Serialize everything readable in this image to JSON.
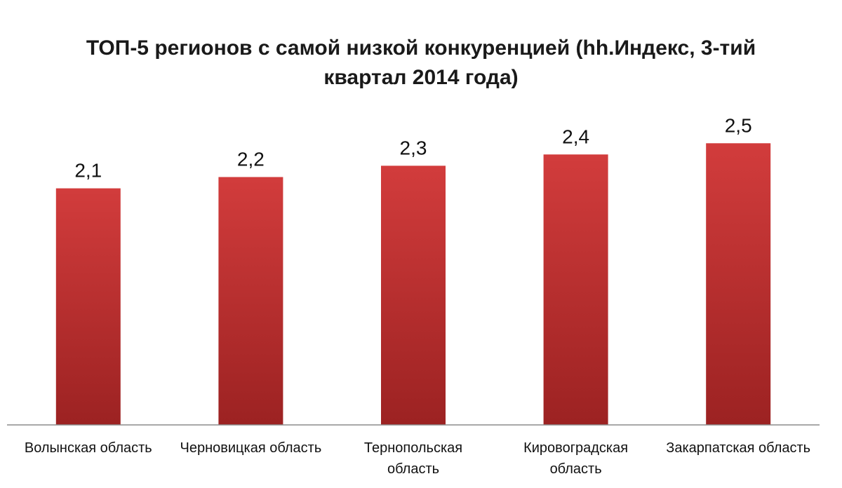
{
  "chart_data": {
    "type": "bar",
    "title": "ТОП-5 регионов с самой низкой конкуренцией (hh.Индекс, 3-тий квартал 2014 года)",
    "categories": [
      "Волынская область",
      "Черновицкая область",
      "Тернопольская область",
      "Кировоградская область",
      "Закарпатская область"
    ],
    "category_lines": [
      [
        "Волынская область"
      ],
      [
        "Черновицкая область"
      ],
      [
        "Тернопольская",
        "область"
      ],
      [
        "Кировоградская",
        "область"
      ],
      [
        "Закарпатская область"
      ]
    ],
    "values": [
      2.1,
      2.2,
      2.3,
      2.4,
      2.5
    ],
    "value_labels": [
      "2,1",
      "2,2",
      "2,3",
      "2,4",
      "2,5"
    ],
    "xlabel": "",
    "ylabel": "",
    "ylim": [
      0,
      2.9
    ],
    "grid": false,
    "legend": "none",
    "colors": {
      "bar_top": "#d23c3c",
      "bar_bottom": "#9c2222",
      "axis": "#8c8c8c"
    }
  }
}
